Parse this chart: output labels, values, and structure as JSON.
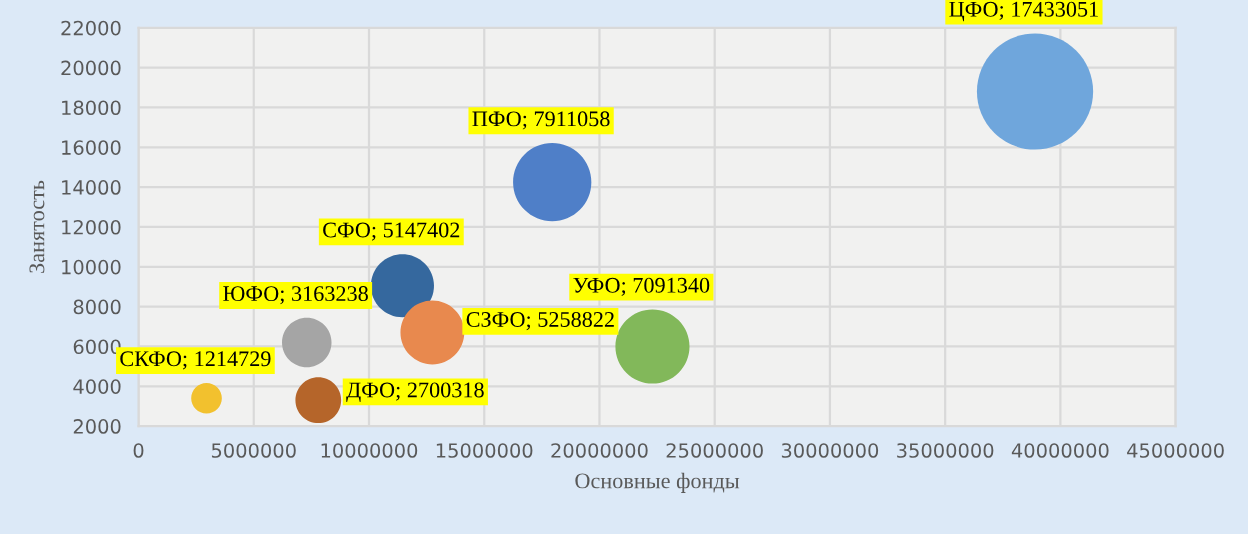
{
  "chart_data": {
    "type": "bubble",
    "xlabel": "Основные фонды",
    "ylabel": "Занятость",
    "x": [
      38900000,
      17950000,
      11450000,
      12750000,
      7300000,
      2950000,
      7800000,
      22300000
    ],
    "values": [
      18800,
      14250,
      9050,
      6700,
      6200,
      3400,
      3300,
      6000
    ],
    "sizes": [
      17433051,
      7911058,
      5147402,
      5258822,
      3163238,
      1214729,
      2700318,
      7091340
    ],
    "colors": [
      "#6fa6dc",
      "#4f7fc8",
      "#35689e",
      "#e8894e",
      "#a5a5a5",
      "#f2c12e",
      "#b5652a",
      "#82b85a"
    ],
    "value_labels": [
      "ЦФО; 17433051",
      "ПФО; 7911058",
      "СФО; 5147402",
      "СЗФО; 5258822",
      "ЮФО; 3163238",
      "СКФО; 1214729",
      "ДФО; 2700318",
      "УФО; 7091340"
    ],
    "xlim": [
      0,
      45000000
    ],
    "xticks": [
      0,
      5000000,
      10000000,
      15000000,
      20000000,
      25000000,
      30000000,
      35000000,
      40000000,
      45000000
    ],
    "ylim": [
      2000,
      22000
    ],
    "yticks": [
      2000,
      4000,
      6000,
      8000,
      10000,
      12000,
      14000,
      16000,
      18000,
      20000,
      22000
    ],
    "grid": true
  }
}
